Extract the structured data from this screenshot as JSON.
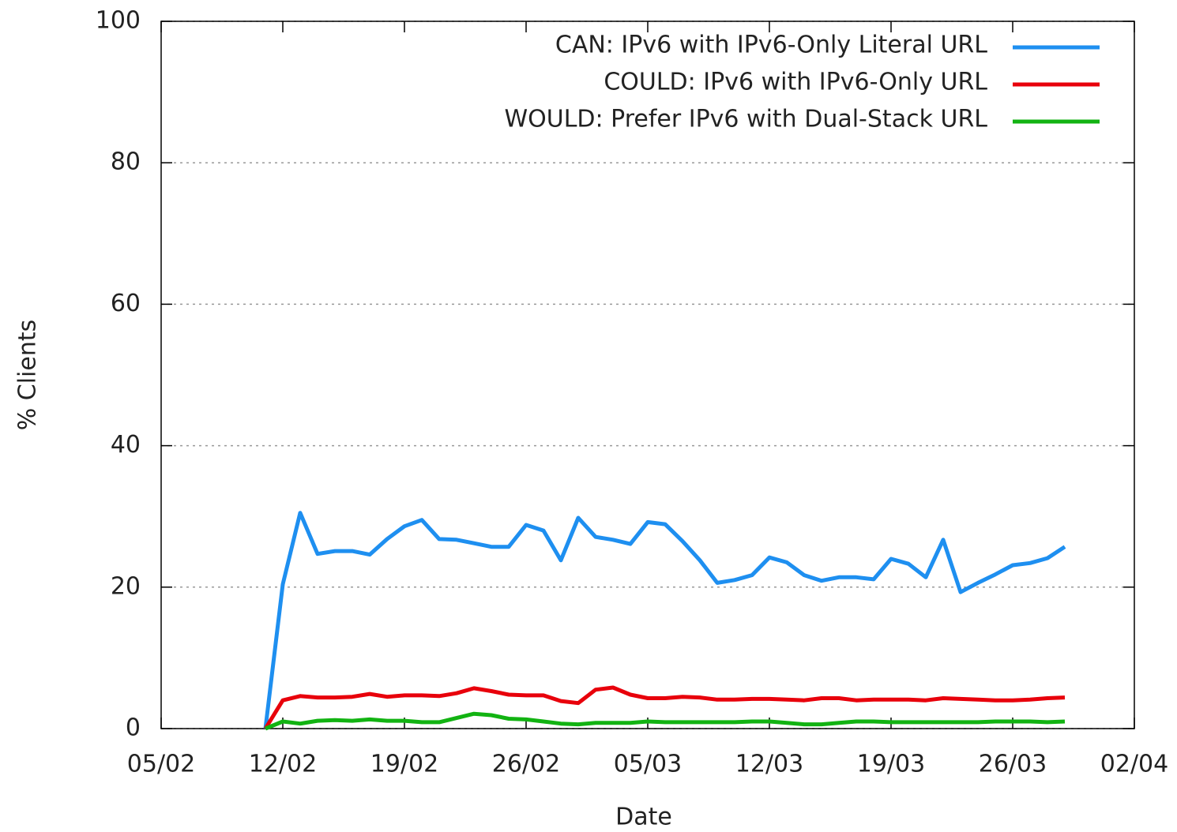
{
  "chart_data": {
    "type": "line",
    "xlabel": "Date",
    "ylabel": "% Clients",
    "x": [
      "11/02",
      "12/02",
      "13/02",
      "14/02",
      "15/02",
      "16/02",
      "17/02",
      "18/02",
      "19/02",
      "20/02",
      "21/02",
      "22/02",
      "23/02",
      "24/02",
      "25/02",
      "26/02",
      "27/02",
      "28/02",
      "01/03",
      "02/03",
      "03/03",
      "04/03",
      "05/03",
      "06/03",
      "07/03",
      "08/03",
      "09/03",
      "10/03",
      "11/03",
      "12/03",
      "13/03",
      "14/03",
      "15/03",
      "16/03",
      "17/03",
      "18/03",
      "19/03",
      "20/03",
      "21/03",
      "22/03",
      "23/03",
      "24/03",
      "25/03",
      "26/03",
      "27/03",
      "28/03",
      "29/03"
    ],
    "series": [
      {
        "name": "CAN: IPv6 with IPv6-Only Literal URL",
        "color": "#1e8ff0",
        "values": [
          0,
          20.4,
          30.5,
          24.7,
          25.1,
          25.1,
          24.6,
          26.8,
          28.6,
          29.5,
          26.8,
          26.7,
          26.2,
          25.7,
          25.7,
          28.8,
          28.0,
          23.8,
          29.8,
          27.1,
          26.7,
          26.1,
          29.2,
          28.9,
          26.5,
          23.8,
          20.6,
          21.0,
          21.7,
          24.2,
          23.5,
          21.7,
          20.9,
          21.4,
          21.4,
          21.1,
          24.0,
          23.3,
          21.4,
          26.7,
          19.3,
          20.6,
          21.8,
          23.1,
          23.4,
          24.1,
          25.7
        ]
      },
      {
        "name": "COULD: IPv6 with IPv6-Only URL",
        "color": "#e8000b",
        "values": [
          0,
          4.0,
          4.6,
          4.4,
          4.4,
          4.5,
          4.9,
          4.5,
          4.7,
          4.7,
          4.6,
          5.0,
          5.7,
          5.3,
          4.8,
          4.7,
          4.7,
          3.9,
          3.6,
          5.5,
          5.8,
          4.8,
          4.3,
          4.3,
          4.5,
          4.4,
          4.1,
          4.1,
          4.2,
          4.2,
          4.1,
          4.0,
          4.3,
          4.3,
          4.0,
          4.1,
          4.1,
          4.1,
          4.0,
          4.3,
          4.2,
          4.1,
          4.0,
          4.0,
          4.1,
          4.3,
          4.4
        ]
      },
      {
        "name": "WOULD: Prefer IPv6 with Dual-Stack URL",
        "color": "#12b312",
        "values": [
          0,
          1.0,
          0.7,
          1.1,
          1.2,
          1.1,
          1.3,
          1.1,
          1.1,
          0.9,
          0.9,
          1.5,
          2.1,
          1.9,
          1.4,
          1.3,
          1.0,
          0.7,
          0.6,
          0.8,
          0.8,
          0.8,
          1.0,
          0.9,
          0.9,
          0.9,
          0.9,
          0.9,
          1.0,
          1.0,
          0.8,
          0.6,
          0.6,
          0.8,
          1.0,
          1.0,
          0.9,
          0.9,
          0.9,
          0.9,
          0.9,
          0.9,
          1.0,
          1.0,
          1.0,
          0.9,
          1.0
        ]
      }
    ],
    "xlim": [
      "05/02",
      "02/04"
    ],
    "xticks": [
      "05/02",
      "12/02",
      "19/02",
      "26/02",
      "05/03",
      "12/03",
      "19/03",
      "26/03",
      "02/04"
    ],
    "ylim": [
      0,
      100
    ],
    "yticks": [
      0,
      20,
      40,
      60,
      80,
      100
    ],
    "grid": true,
    "legend": "top-right"
  }
}
